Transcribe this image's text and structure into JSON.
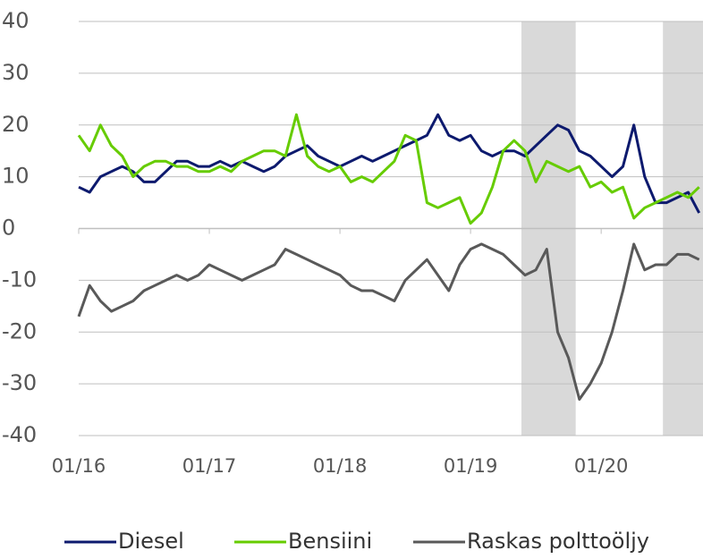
{
  "chart_data": {
    "type": "line",
    "x": [
      "01/16",
      "02/16",
      "03/16",
      "04/16",
      "05/16",
      "06/16",
      "07/16",
      "08/16",
      "09/16",
      "10/16",
      "11/16",
      "12/16",
      "01/17",
      "02/17",
      "03/17",
      "04/17",
      "05/17",
      "06/17",
      "07/17",
      "08/17",
      "09/17",
      "10/17",
      "11/17",
      "12/17",
      "01/18",
      "02/18",
      "03/18",
      "04/18",
      "05/18",
      "06/18",
      "07/18",
      "08/18",
      "09/18",
      "10/18",
      "11/18",
      "12/18",
      "01/19",
      "02/19",
      "03/19",
      "04/19",
      "05/19",
      "06/19",
      "07/19",
      "08/19",
      "09/19",
      "10/19",
      "11/19",
      "12/19",
      "01/20",
      "02/20",
      "03/20",
      "04/20",
      "05/20",
      "06/20",
      "07/20",
      "08/20",
      "09/20",
      "10/20"
    ],
    "xticks": [
      "01/16",
      "01/17",
      "01/18",
      "01/19",
      "01/20"
    ],
    "ylim": [
      -40,
      40
    ],
    "yticks": [
      -40,
      -30,
      -20,
      -10,
      0,
      10,
      20,
      30,
      40
    ],
    "grid": true,
    "shaded": [
      {
        "from": "06/19",
        "to": "10/19"
      },
      {
        "from": "07/20",
        "to": "10/20"
      }
    ],
    "shade_color": "#d9d9d9",
    "legend": "bottom",
    "series": [
      {
        "name": "Diesel",
        "color": "#0d1a6e",
        "values": [
          8,
          7,
          10,
          11,
          12,
          11,
          9,
          9,
          11,
          13,
          13,
          12,
          12,
          13,
          12,
          13,
          12,
          11,
          12,
          14,
          15,
          16,
          14,
          13,
          12,
          13,
          14,
          13,
          14,
          15,
          16,
          17,
          18,
          22,
          18,
          17,
          18,
          15,
          14,
          15,
          15,
          14,
          16,
          18,
          20,
          19,
          15,
          14,
          12,
          10,
          12,
          20,
          10,
          5,
          5,
          6,
          7,
          3
        ]
      },
      {
        "name": "Bensiini",
        "color": "#66cc00",
        "values": [
          18,
          15,
          20,
          16,
          14,
          10,
          12,
          13,
          13,
          12,
          12,
          11,
          11,
          12,
          11,
          13,
          14,
          15,
          15,
          14,
          22,
          14,
          12,
          11,
          12,
          9,
          10,
          9,
          11,
          13,
          18,
          17,
          5,
          4,
          5,
          6,
          1,
          3,
          8,
          15,
          17,
          15,
          9,
          13,
          12,
          11,
          12,
          8,
          9,
          7,
          8,
          2,
          4,
          5,
          6,
          7,
          6,
          8
        ]
      },
      {
        "name": "Raskas polttoöljy",
        "color": "#595959",
        "values": [
          -17,
          -11,
          -14,
          -16,
          -15,
          -14,
          -12,
          -11,
          -10,
          -9,
          -10,
          -9,
          -7,
          -8,
          -9,
          -10,
          -9,
          -8,
          -7,
          -4,
          -5,
          -6,
          -7,
          -8,
          -9,
          -11,
          -12,
          -12,
          -13,
          -14,
          -10,
          -8,
          -6,
          -9,
          -12,
          -7,
          -4,
          -3,
          -4,
          -5,
          -7,
          -9,
          -8,
          -4,
          -20,
          -25,
          -33,
          -30,
          -26,
          -20,
          -12,
          -3,
          -8,
          -7,
          -7,
          -5,
          -5,
          -6
        ]
      }
    ]
  }
}
